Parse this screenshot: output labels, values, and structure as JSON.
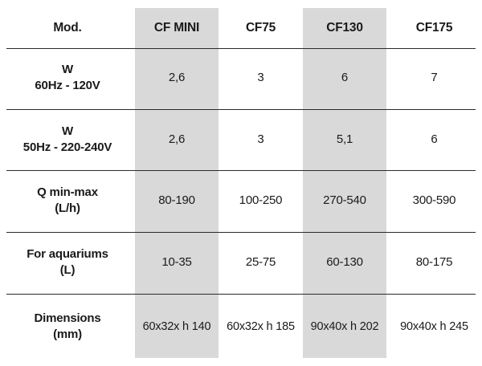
{
  "header": {
    "mod": "Mod.",
    "models": [
      "CF MINI",
      "CF75",
      "CF130",
      "CF175"
    ]
  },
  "rows": [
    {
      "label": [
        "W",
        "60Hz - 120V"
      ],
      "values": [
        "2,6",
        "3",
        "6",
        "7"
      ]
    },
    {
      "label": [
        "W",
        "50Hz - 220-240V"
      ],
      "values": [
        "2,6",
        "3",
        "5,1",
        "6"
      ]
    },
    {
      "label": [
        "Q min-max",
        "(L/h)"
      ],
      "values": [
        "80-190",
        "100-250",
        "270-540",
        "300-590"
      ]
    },
    {
      "label": [
        "For aquariums",
        "(L)"
      ],
      "values": [
        "10-35",
        "25-75",
        "60-130",
        "80-175"
      ]
    },
    {
      "label": [
        "Dimensions",
        "(mm)"
      ],
      "values": [
        "60x32x h 140",
        "60x32x h 185",
        "90x40x h 202",
        "90x40x h 245"
      ]
    }
  ],
  "colors": {
    "shade": "#d9d9d9",
    "rule": "#2a2a2a",
    "text": "#1a1a1a"
  }
}
